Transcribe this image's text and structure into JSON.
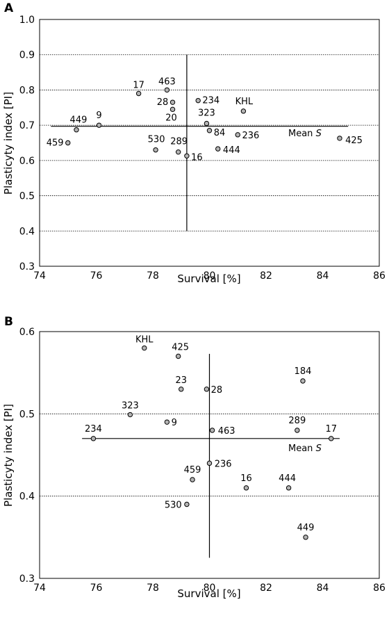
{
  "chart_data": [
    {
      "panel": "A",
      "type": "scatter",
      "xlabel": "Survival [%]",
      "ylabel": "Plasticyty index [PI]",
      "xlim": [
        74,
        86
      ],
      "ylim": [
        0.3,
        1.0
      ],
      "x_ticks": [
        "74",
        "76",
        "78",
        "80",
        "82",
        "84",
        "86"
      ],
      "y_ticks": [
        "0.3",
        "0.4",
        "0.5",
        "0.6",
        "0.7",
        "0.8",
        "0.9",
        "1.0"
      ],
      "grid": "horizontal dotted",
      "mean_label_prefix": "Mean ",
      "mean_label_var": "S",
      "mean_lines": {
        "horizontal_y": 0.697,
        "horizontal_x_from": 74.4,
        "horizontal_x_to": 84.9,
        "vertical_x": 79.2,
        "vertical_y_from": 0.4,
        "vertical_y_to": 0.9
      },
      "points": [
        {
          "label": "17",
          "x": 77.5,
          "y": 0.79
        },
        {
          "label": "463",
          "x": 78.5,
          "y": 0.8
        },
        {
          "label": "28",
          "x": 78.7,
          "y": 0.765
        },
        {
          "label": "20",
          "x": 78.7,
          "y": 0.745
        },
        {
          "label": "234",
          "x": 79.6,
          "y": 0.77
        },
        {
          "label": "KHL",
          "x": 81.2,
          "y": 0.74
        },
        {
          "label": "449",
          "x": 75.3,
          "y": 0.687
        },
        {
          "label": "9",
          "x": 76.1,
          "y": 0.7
        },
        {
          "label": "459",
          "x": 75.0,
          "y": 0.65
        },
        {
          "label": "323",
          "x": 79.9,
          "y": 0.705
        },
        {
          "label": "84",
          "x": 80.0,
          "y": 0.685
        },
        {
          "label": "236",
          "x": 81.0,
          "y": 0.673
        },
        {
          "label": "425",
          "x": 84.6,
          "y": 0.663
        },
        {
          "label": "530",
          "x": 78.1,
          "y": 0.63
        },
        {
          "label": "289",
          "x": 78.9,
          "y": 0.624
        },
        {
          "label": "16",
          "x": 79.2,
          "y": 0.613
        },
        {
          "label": "444",
          "x": 80.3,
          "y": 0.633
        }
      ]
    },
    {
      "panel": "B",
      "type": "scatter",
      "xlabel": "Survival [%]",
      "ylabel": "Plasticyty index [PI]",
      "xlim": [
        74,
        86
      ],
      "ylim": [
        0.3,
        0.6
      ],
      "x_ticks": [
        "74",
        "76",
        "78",
        "80",
        "82",
        "84",
        "86"
      ],
      "y_ticks": [
        "0.3",
        "0.4",
        "0.5",
        "0.6"
      ],
      "grid": "horizontal dotted",
      "mean_label_prefix": "Mean ",
      "mean_label_var": "S",
      "mean_lines": {
        "horizontal_y": 0.47,
        "horizontal_x_from": 75.5,
        "horizontal_x_to": 84.6,
        "vertical_x": 80.0,
        "vertical_y_from": 0.325,
        "vertical_y_to": 0.573
      },
      "points": [
        {
          "label": "KHL",
          "x": 77.7,
          "y": 0.58
        },
        {
          "label": "425",
          "x": 78.9,
          "y": 0.57
        },
        {
          "label": "184",
          "x": 83.3,
          "y": 0.54
        },
        {
          "label": "23",
          "x": 79.0,
          "y": 0.53
        },
        {
          "label": "28",
          "x": 79.9,
          "y": 0.53
        },
        {
          "label": "323",
          "x": 77.2,
          "y": 0.499
        },
        {
          "label": "9",
          "x": 78.5,
          "y": 0.49
        },
        {
          "label": "463",
          "x": 80.1,
          "y": 0.48
        },
        {
          "label": "289",
          "x": 83.1,
          "y": 0.48
        },
        {
          "label": "17",
          "x": 84.3,
          "y": 0.47
        },
        {
          "label": "234",
          "x": 75.9,
          "y": 0.47
        },
        {
          "label": "236",
          "x": 80.0,
          "y": 0.44
        },
        {
          "label": "459",
          "x": 79.4,
          "y": 0.42
        },
        {
          "label": "16",
          "x": 81.3,
          "y": 0.41
        },
        {
          "label": "444",
          "x": 82.8,
          "y": 0.41
        },
        {
          "label": "530",
          "x": 79.2,
          "y": 0.39
        },
        {
          "label": "449",
          "x": 83.4,
          "y": 0.35
        }
      ]
    }
  ]
}
